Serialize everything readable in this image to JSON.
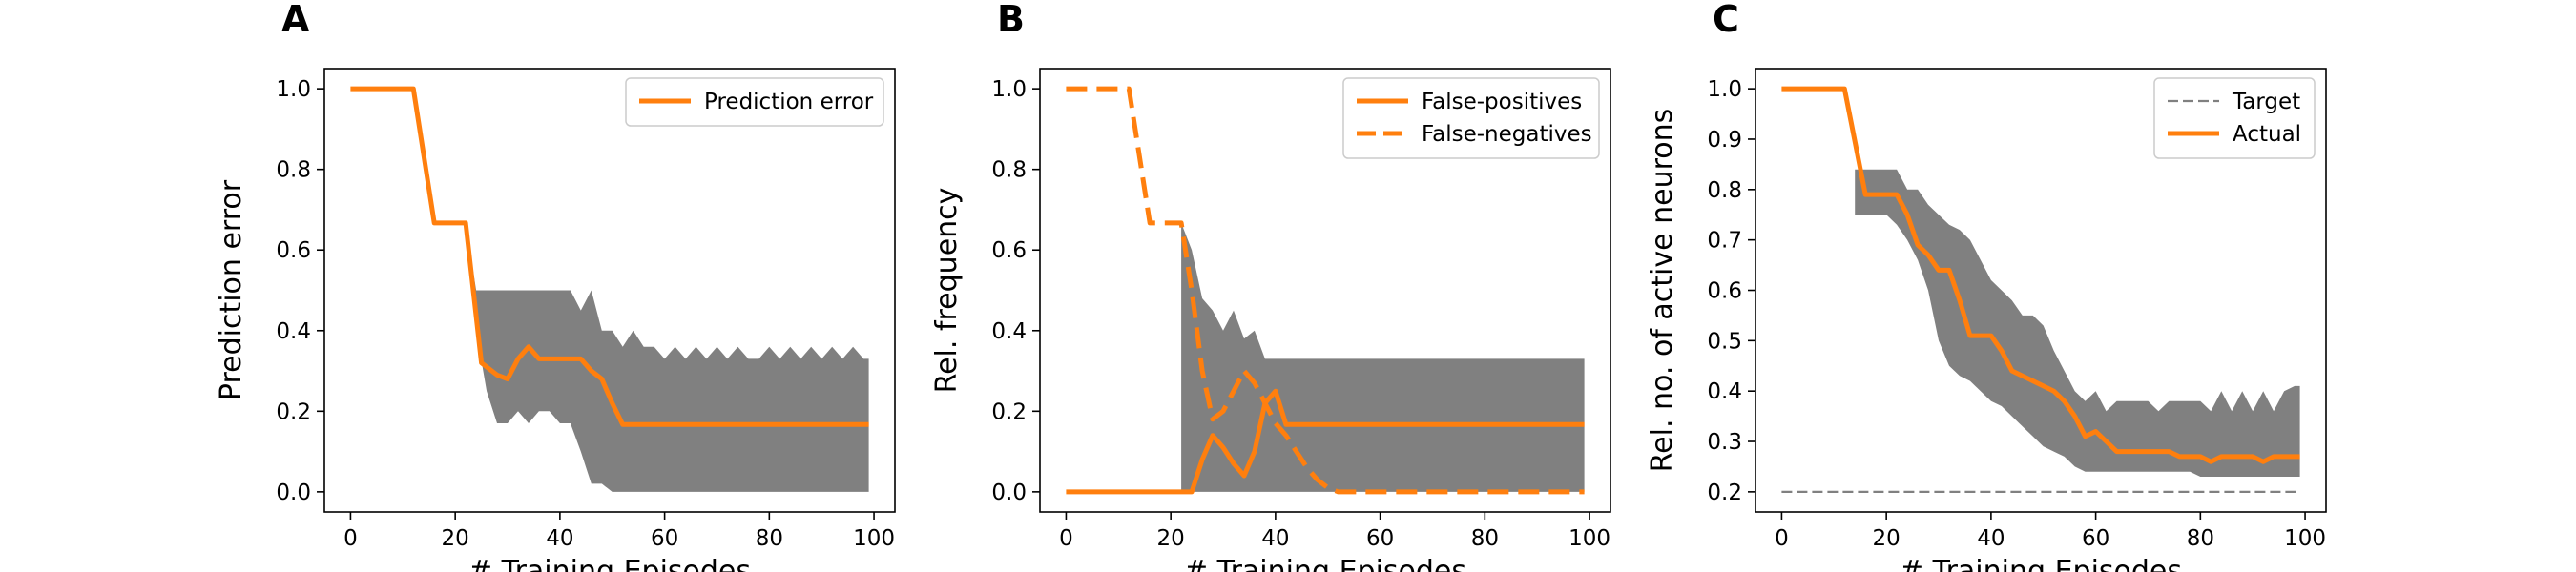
{
  "colors": {
    "orange": "#ff7f0e",
    "band": "#808080",
    "target": "#808080"
  },
  "chart_data": [
    {
      "panel": "A",
      "type": "line",
      "xlabel": "# Training Episodes",
      "ylabel": "Prediction error",
      "xlim": [
        -5,
        104
      ],
      "ylim": [
        -0.05,
        1.05
      ],
      "xticks": [
        0,
        20,
        40,
        60,
        80,
        100
      ],
      "yticks": [
        0.0,
        0.2,
        0.4,
        0.6,
        0.8,
        1.0
      ],
      "ytick_labels": [
        "0.0",
        "0.2",
        "0.4",
        "0.6",
        "0.8",
        "1.0"
      ],
      "legend_position": "upper right",
      "band": {
        "x": [
          22,
          24,
          26,
          28,
          30,
          32,
          34,
          36,
          38,
          40,
          42,
          44,
          46,
          48,
          50,
          52,
          54,
          56,
          58,
          60,
          62,
          64,
          66,
          68,
          70,
          72,
          74,
          76,
          78,
          80,
          82,
          84,
          86,
          88,
          90,
          92,
          94,
          96,
          98,
          99
        ],
        "upper": [
          0.667,
          0.5,
          0.5,
          0.5,
          0.5,
          0.5,
          0.5,
          0.5,
          0.5,
          0.5,
          0.5,
          0.45,
          0.5,
          0.4,
          0.4,
          0.36,
          0.4,
          0.36,
          0.36,
          0.33,
          0.36,
          0.33,
          0.36,
          0.33,
          0.36,
          0.33,
          0.36,
          0.33,
          0.33,
          0.36,
          0.33,
          0.36,
          0.33,
          0.36,
          0.33,
          0.36,
          0.33,
          0.36,
          0.33,
          0.33
        ],
        "lower": [
          0.667,
          0.4,
          0.25,
          0.17,
          0.17,
          0.2,
          0.17,
          0.2,
          0.2,
          0.17,
          0.17,
          0.1,
          0.02,
          0.02,
          0.0,
          0.0,
          0.0,
          0.0,
          0.0,
          0.0,
          0.0,
          0.0,
          0.0,
          0.0,
          0.0,
          0.0,
          0.0,
          0.0,
          0.0,
          0.0,
          0.0,
          0.0,
          0.0,
          0.0,
          0.0,
          0.0,
          0.0,
          0.0,
          0.0,
          0.0
        ]
      },
      "series": [
        {
          "name": "Prediction error",
          "style": "solid",
          "x": [
            0,
            12,
            16,
            22,
            25,
            28,
            30,
            32,
            34,
            36,
            38,
            40,
            42,
            44,
            46,
            48,
            50,
            52,
            99
          ],
          "y": [
            1.0,
            1.0,
            0.667,
            0.667,
            0.32,
            0.29,
            0.28,
            0.33,
            0.36,
            0.33,
            0.33,
            0.33,
            0.33,
            0.33,
            0.3,
            0.28,
            0.22,
            0.167,
            0.167
          ]
        }
      ]
    },
    {
      "panel": "B",
      "type": "line",
      "xlabel": "# Training Episodes",
      "ylabel": "Rel. frequency",
      "xlim": [
        -5,
        104
      ],
      "ylim": [
        -0.05,
        1.05
      ],
      "xticks": [
        0,
        20,
        40,
        60,
        80,
        100
      ],
      "yticks": [
        0.0,
        0.2,
        0.4,
        0.6,
        0.8,
        1.0
      ],
      "ytick_labels": [
        "0.0",
        "0.2",
        "0.4",
        "0.6",
        "0.8",
        "1.0"
      ],
      "legend_position": "upper right",
      "band": {
        "x": [
          22,
          24,
          26,
          28,
          30,
          32,
          34,
          36,
          38,
          40,
          42,
          44,
          46,
          48,
          50,
          52,
          60,
          70,
          80,
          90,
          99
        ],
        "upper": [
          0.667,
          0.6,
          0.48,
          0.45,
          0.4,
          0.45,
          0.38,
          0.4,
          0.33,
          0.33,
          0.33,
          0.33,
          0.33,
          0.33,
          0.33,
          0.33,
          0.33,
          0.33,
          0.33,
          0.33,
          0.33
        ],
        "lower": [
          0.0,
          0.0,
          0.0,
          0.0,
          0.0,
          0.0,
          0.0,
          0.0,
          0.0,
          0.0,
          0.0,
          0.0,
          0.0,
          0.0,
          0.0,
          0.0,
          0.0,
          0.0,
          0.0,
          0.0,
          0.0
        ]
      },
      "series": [
        {
          "name": "False-positives",
          "style": "solid",
          "x": [
            0,
            24,
            26,
            28,
            30,
            32,
            34,
            36,
            38,
            40,
            42,
            99
          ],
          "y": [
            0.0,
            0.0,
            0.08,
            0.14,
            0.11,
            0.07,
            0.04,
            0.1,
            0.22,
            0.25,
            0.167,
            0.167
          ]
        },
        {
          "name": "False-negatives",
          "style": "dashed",
          "x": [
            0,
            12,
            16,
            22,
            24,
            26,
            28,
            30,
            32,
            34,
            36,
            38,
            40,
            42,
            44,
            46,
            48,
            50,
            52,
            99
          ],
          "y": [
            1.0,
            1.0,
            0.667,
            0.667,
            0.5,
            0.3,
            0.18,
            0.2,
            0.25,
            0.3,
            0.27,
            0.22,
            0.17,
            0.14,
            0.1,
            0.06,
            0.03,
            0.01,
            0.0,
            0.0
          ]
        }
      ]
    },
    {
      "panel": "C",
      "type": "line",
      "xlabel": "# Training Episodes",
      "ylabel": "Rel. no. of active neurons",
      "xlim": [
        -5,
        104
      ],
      "ylim": [
        0.16,
        1.04
      ],
      "xticks": [
        0,
        20,
        40,
        60,
        80,
        100
      ],
      "yticks": [
        0.2,
        0.3,
        0.4,
        0.5,
        0.6,
        0.7,
        0.8,
        0.9,
        1.0
      ],
      "ytick_labels": [
        "0.2",
        "0.3",
        "0.4",
        "0.5",
        "0.6",
        "0.7",
        "0.8",
        "0.9",
        "1.0"
      ],
      "legend_position": "upper right",
      "band": {
        "x": [
          14,
          16,
          18,
          20,
          22,
          24,
          26,
          28,
          30,
          32,
          34,
          36,
          38,
          40,
          42,
          44,
          46,
          48,
          50,
          52,
          54,
          56,
          58,
          60,
          62,
          64,
          66,
          68,
          70,
          72,
          74,
          76,
          78,
          80,
          82,
          84,
          86,
          88,
          90,
          92,
          94,
          96,
          98,
          99
        ],
        "upper": [
          0.84,
          0.84,
          0.84,
          0.84,
          0.84,
          0.8,
          0.8,
          0.77,
          0.75,
          0.73,
          0.72,
          0.7,
          0.66,
          0.62,
          0.6,
          0.58,
          0.55,
          0.55,
          0.53,
          0.48,
          0.44,
          0.4,
          0.38,
          0.4,
          0.36,
          0.38,
          0.38,
          0.38,
          0.38,
          0.36,
          0.38,
          0.38,
          0.38,
          0.38,
          0.36,
          0.4,
          0.36,
          0.4,
          0.36,
          0.4,
          0.36,
          0.4,
          0.41,
          0.41
        ],
        "lower": [
          0.75,
          0.75,
          0.75,
          0.75,
          0.73,
          0.7,
          0.66,
          0.6,
          0.5,
          0.45,
          0.43,
          0.42,
          0.4,
          0.38,
          0.37,
          0.35,
          0.33,
          0.31,
          0.29,
          0.28,
          0.27,
          0.25,
          0.24,
          0.24,
          0.24,
          0.24,
          0.24,
          0.24,
          0.24,
          0.24,
          0.24,
          0.24,
          0.24,
          0.23,
          0.23,
          0.23,
          0.23,
          0.23,
          0.23,
          0.23,
          0.23,
          0.23,
          0.23,
          0.23
        ]
      },
      "series": [
        {
          "name": "Target",
          "style": "dashed-thin",
          "color": "#808080",
          "x": [
            0,
            99
          ],
          "y": [
            0.2,
            0.2
          ]
        },
        {
          "name": "Actual",
          "style": "solid",
          "x": [
            0,
            12,
            16,
            22,
            24,
            26,
            28,
            30,
            32,
            34,
            36,
            38,
            40,
            42,
            44,
            46,
            48,
            50,
            52,
            54,
            56,
            58,
            60,
            62,
            64,
            66,
            68,
            70,
            72,
            74,
            76,
            78,
            80,
            82,
            84,
            86,
            88,
            90,
            92,
            94,
            96,
            98,
            99
          ],
          "y": [
            1.0,
            1.0,
            0.79,
            0.79,
            0.75,
            0.69,
            0.67,
            0.64,
            0.64,
            0.58,
            0.51,
            0.51,
            0.51,
            0.48,
            0.44,
            0.43,
            0.42,
            0.41,
            0.4,
            0.38,
            0.35,
            0.31,
            0.32,
            0.3,
            0.28,
            0.28,
            0.28,
            0.28,
            0.28,
            0.28,
            0.27,
            0.27,
            0.27,
            0.26,
            0.27,
            0.27,
            0.27,
            0.27,
            0.26,
            0.27,
            0.27,
            0.27,
            0.27
          ]
        }
      ]
    }
  ]
}
